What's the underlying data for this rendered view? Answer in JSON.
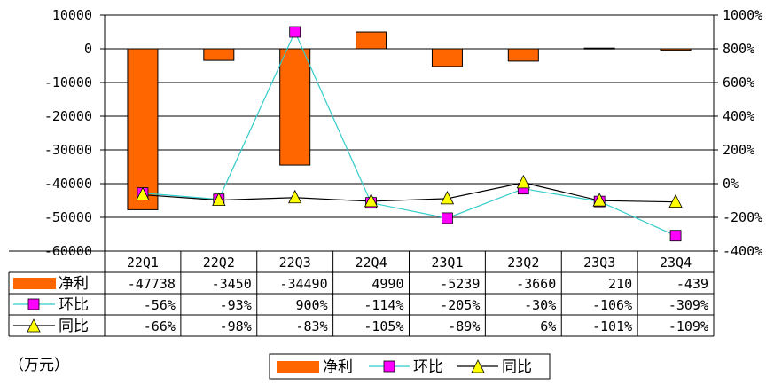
{
  "chart_data": {
    "type": "bar",
    "unit_label": "（万元）",
    "categories": [
      "22Q1",
      "22Q2",
      "22Q3",
      "22Q4",
      "23Q1",
      "23Q2",
      "23Q3",
      "23Q4"
    ],
    "left_axis": {
      "ylim": [
        -60000,
        10000
      ],
      "ticks": [
        10000,
        0,
        -10000,
        -20000,
        -30000,
        -40000,
        -50000,
        -60000
      ],
      "tick_labels": [
        "10000",
        "0",
        "-10000",
        "-20000",
        "-30000",
        "-40000",
        "-50000",
        "-60000"
      ]
    },
    "right_axis": {
      "ylim": [
        -400,
        1000
      ],
      "ticks": [
        1000,
        800,
        600,
        400,
        200,
        0,
        -200,
        -400
      ],
      "tick_labels": [
        "1000%",
        "800%",
        "600%",
        "400%",
        "200%",
        "0%",
        "-200%",
        "-400%"
      ]
    },
    "grid": true,
    "legend_position": "bottom",
    "series": [
      {
        "name": "净利",
        "type": "bar",
        "axis": "left",
        "color": "#FF6600",
        "values": [
          -47738,
          -3450,
          -34490,
          4990,
          -5239,
          -3660,
          210,
          -439
        ],
        "labels": [
          "-47738",
          "-3450",
          "-34490",
          "4990",
          "-5239",
          "-3660",
          "210",
          "-439"
        ]
      },
      {
        "name": "环比",
        "type": "line",
        "axis": "right",
        "color": "#33CCCC",
        "marker": "square",
        "marker_color": "#FF00FF",
        "values": [
          -56,
          -93,
          900,
          -114,
          -205,
          -30,
          -106,
          -309
        ],
        "labels": [
          "-56%",
          "-93%",
          "900%",
          "-114%",
          "-205%",
          "-30%",
          "-106%",
          "-309%"
        ]
      },
      {
        "name": "同比",
        "type": "line",
        "axis": "right",
        "color": "#000000",
        "marker": "triangle",
        "marker_color": "#FFFF00",
        "values": [
          -66,
          -98,
          -83,
          -105,
          -89,
          6,
          -101,
          -109
        ],
        "labels": [
          "-66%",
          "-98%",
          "-83%",
          "-105%",
          "-89%",
          "6%",
          "-101%",
          "-109%"
        ]
      }
    ]
  }
}
